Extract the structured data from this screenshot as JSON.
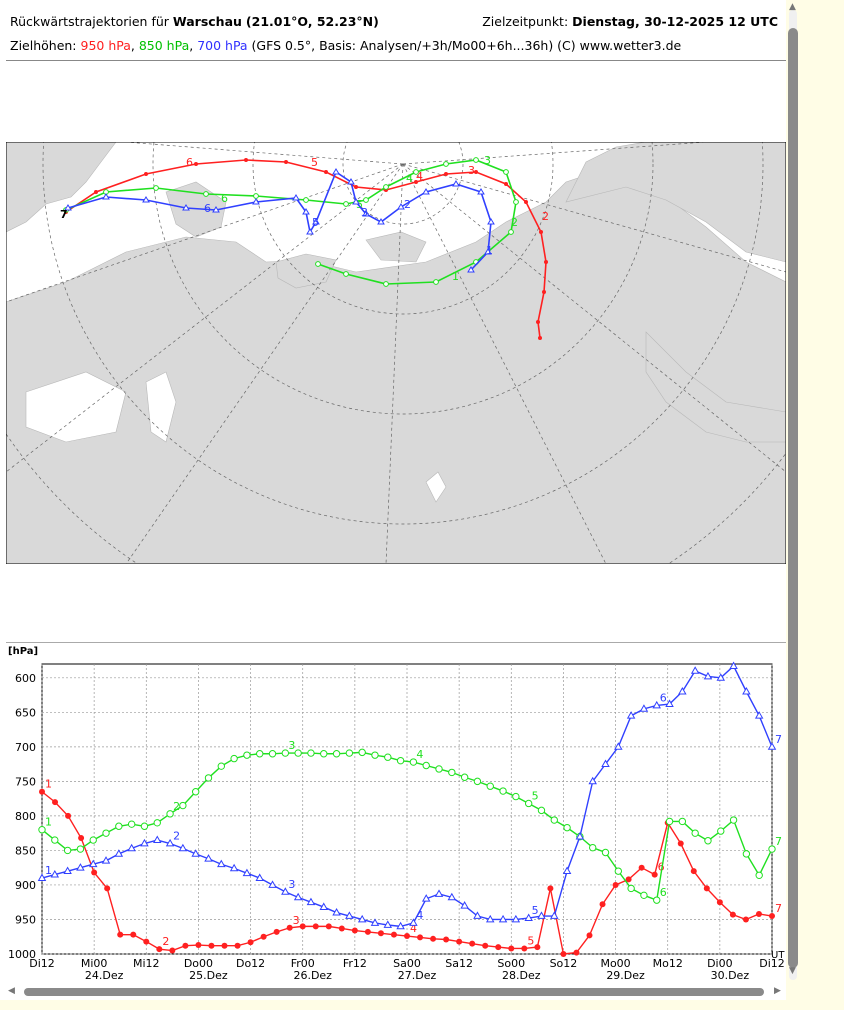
{
  "header": {
    "line1_prefix": "Rückwärtstrajektorien für ",
    "city": "Warschau",
    "coords": "(21.01°O, 52.23°N)",
    "target_label": "Zielzeitpunkt: ",
    "target_value": "Dienstag, 30-12-2025   12 UTC",
    "line2_prefix": "Zielhöhen: ",
    "h950": "950 hPa",
    "h850": "850 hPa",
    "h700": "700 hPa",
    "line2_suffix": " (GFS 0.5°, Basis: Analysen/+3h/Mo00+6h...36h)   (C) www.wetter3.de"
  },
  "colors": {
    "hpa950": "#ff2020",
    "hpa850": "#20e020",
    "hpa700": "#3040ff",
    "land": "#d9d9d9",
    "sea": "#ffffff"
  },
  "map": {
    "labels_950": [
      "6",
      "5",
      "4",
      "3",
      "2"
    ],
    "labels_850": [
      "6",
      "5",
      "4",
      "3",
      "2",
      "1"
    ],
    "labels_700": [
      "6",
      "5",
      "3",
      "2",
      "1"
    ],
    "start_label": "7"
  },
  "chart_data": {
    "type": "line",
    "ylabel": "[hPa]",
    "ylim": [
      1000,
      580
    ],
    "yticks": [
      600,
      650,
      700,
      750,
      800,
      850,
      900,
      950,
      1000
    ],
    "x_ticks": [
      "Di12",
      "Mi00",
      "Mi12",
      "Do00",
      "Do12",
      "Fr00",
      "Fr12",
      "Sa00",
      "Sa12",
      "So00",
      "So12",
      "Mo00",
      "Mo12",
      "Di00",
      "Di12"
    ],
    "date_labels": [
      "24.Dez",
      "25.Dez",
      "26.Dez",
      "27.Dez",
      "28.Dez",
      "29.Dez",
      "30.Dez"
    ],
    "corner_label": "UT",
    "series": [
      {
        "name": "950 hPa",
        "marker": "filled-circle",
        "day_labels": [
          "1",
          "2",
          "3",
          "4",
          "5",
          "6",
          "7"
        ],
        "values": [
          765,
          780,
          800,
          832,
          882,
          905,
          972,
          972,
          982,
          993,
          995,
          988,
          987,
          988,
          988,
          988,
          983,
          975,
          968,
          962,
          960,
          960,
          960,
          963,
          966,
          968,
          970,
          972,
          974,
          976,
          978,
          979,
          982,
          985,
          988,
          990,
          992,
          992,
          990,
          905,
          1000,
          998,
          973,
          928,
          900,
          892,
          875,
          885,
          810,
          840,
          880,
          905,
          925,
          943,
          950,
          942,
          945
        ]
      },
      {
        "name": "850 hPa",
        "marker": "open-circle",
        "day_labels": [
          "1",
          "2",
          "3",
          "4",
          "5",
          "6",
          "7"
        ],
        "values": [
          820,
          835,
          850,
          848,
          835,
          825,
          815,
          812,
          815,
          810,
          797,
          785,
          765,
          745,
          728,
          717,
          712,
          710,
          710,
          709,
          709,
          709,
          710,
          710,
          709,
          708,
          712,
          715,
          720,
          722,
          727,
          732,
          737,
          744,
          750,
          757,
          764,
          772,
          782,
          792,
          806,
          817,
          830,
          846,
          853,
          880,
          905,
          915,
          922,
          808,
          808,
          825,
          836,
          822,
          806,
          855,
          886,
          848
        ]
      },
      {
        "name": "700 hPa",
        "marker": "open-triangle",
        "day_labels": [
          "1",
          "2",
          "3",
          "4",
          "5",
          "6",
          "7"
        ],
        "values": [
          890,
          885,
          880,
          875,
          870,
          865,
          855,
          847,
          840,
          835,
          840,
          847,
          855,
          862,
          870,
          876,
          883,
          890,
          900,
          910,
          918,
          925,
          932,
          940,
          945,
          950,
          955,
          958,
          960,
          955,
          920,
          913,
          918,
          930,
          945,
          950,
          950,
          950,
          948,
          945,
          945,
          880,
          830,
          750,
          725,
          700,
          655,
          645,
          640,
          638,
          620,
          590,
          598,
          600,
          583,
          620,
          655,
          700
        ]
      }
    ]
  }
}
